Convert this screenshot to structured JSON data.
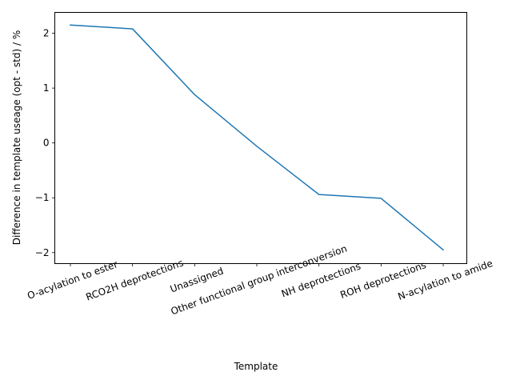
{
  "chart_data": {
    "type": "line",
    "title": "",
    "xlabel": "Template",
    "ylabel": "Difference in template useage (opt - std) / %",
    "categories": [
      "O-acylation to ester",
      "RCO2H deprotections",
      "Unassigned",
      "Other functional group interconversion",
      "NH deprotections",
      "ROH deprotections",
      "N-acylation to amide"
    ],
    "values": [
      2.15,
      2.08,
      0.88,
      -0.06,
      -0.94,
      -1.01,
      -1.95
    ],
    "yticks": [
      -2,
      -1,
      0,
      1,
      2
    ],
    "ytick_labels": [
      "−2",
      "−1",
      "0",
      "1",
      "2"
    ],
    "ylim": [
      -2.2,
      2.38
    ],
    "xtick_rotation_deg": 20,
    "line_color": "#1f77b4",
    "grid": false,
    "legend": "none"
  }
}
